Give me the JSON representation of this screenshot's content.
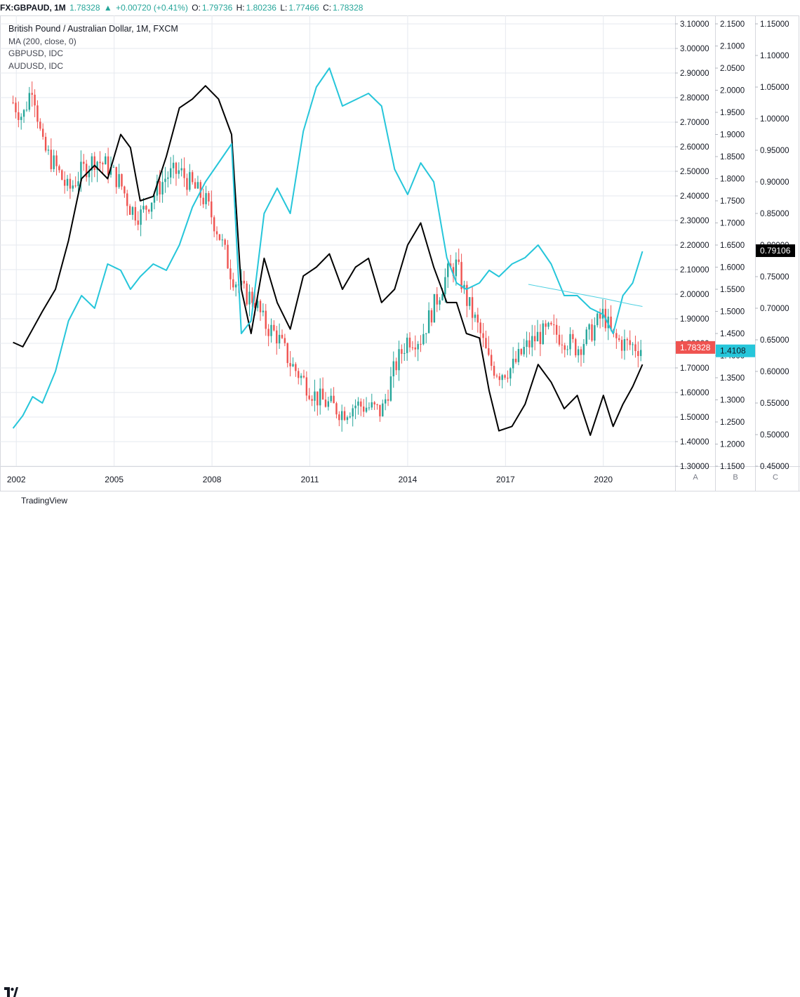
{
  "header": {
    "symbol": "FX:GBPAUD, 1M",
    "price": "1.78328",
    "change": "+0.00720 (+0.41%)",
    "ohlc": [
      {
        "label": "O:",
        "value": "1.79736"
      },
      {
        "label": "H:",
        "value": "1.80236"
      },
      {
        "label": "L:",
        "value": "1.77466"
      },
      {
        "label": "C:",
        "value": "1.78328"
      }
    ]
  },
  "legend": {
    "title": "British Pound / Australian Dollar, 1M, FXCM",
    "items": [
      "MA (200, close, 0)",
      "GBPUSD, IDC",
      "AUDUSD, IDC"
    ]
  },
  "footer": {
    "brand": "TradingView"
  },
  "colors": {
    "up": "#26a69a",
    "down": "#ef5350",
    "gbpusd": "#000000",
    "audusd": "#26c6da",
    "ma": "#4dd0e1",
    "grid": "#e6e9ef"
  },
  "chart_data": {
    "type": "line",
    "x_ticks": [
      "2002",
      "2005",
      "2008",
      "2011",
      "2014",
      "2017",
      "2020"
    ],
    "x_tick_years": [
      2002,
      2005,
      2008,
      2011,
      2014,
      2017,
      2020
    ],
    "xlim": [
      2001.5,
      2022.2
    ],
    "grid": true,
    "scale_labels": [
      "A",
      "B",
      "C"
    ],
    "axes": {
      "A": {
        "ylim": [
          1.3,
          3.1
        ],
        "ticks": [
          "1.30000",
          "1.40000",
          "1.50000",
          "1.60000",
          "1.70000",
          "1.80000",
          "1.90000",
          "2.00000",
          "2.10000",
          "2.20000",
          "2.30000",
          "2.40000",
          "2.50000",
          "2.60000",
          "2.70000",
          "2.80000",
          "2.90000",
          "3.00000",
          "3.10000"
        ],
        "price_label": "1.78328",
        "price_value": 1.78328
      },
      "B": {
        "ylim": [
          1.15,
          2.15
        ],
        "ticks": [
          "1.1500",
          "1.2000",
          "1.2500",
          "1.3000",
          "1.3500",
          "1.4000",
          "1.4500",
          "1.5000",
          "1.5500",
          "1.6000",
          "1.6500",
          "1.7000",
          "1.7500",
          "1.8000",
          "1.8500",
          "1.9000",
          "1.9500",
          "2.0000",
          "2.0500",
          "2.1000",
          "2.1500"
        ],
        "price_label": "1.4108",
        "price_value": 1.4108
      },
      "C": {
        "ylim": [
          0.45,
          1.15
        ],
        "ticks": [
          "0.45000",
          "0.50000",
          "0.55000",
          "0.60000",
          "0.65000",
          "0.70000",
          "0.75000",
          "0.80000",
          "0.85000",
          "0.90000",
          "0.95000",
          "1.00000",
          "1.05000",
          "1.10000",
          "1.15000"
        ],
        "price_label": "0.79106",
        "price_value": 0.79106
      }
    },
    "series": [
      {
        "name": "British Pound / Australian Dollar",
        "axis": "A",
        "kind": "candles",
        "x": [
          2001.9,
          2002.2,
          2002.5,
          2002.8,
          2003.2,
          2003.6,
          2004.0,
          2004.4,
          2004.8,
          2005.2,
          2005.5,
          2005.8,
          2006.2,
          2006.6,
          2007.0,
          2007.4,
          2007.8,
          2008.2,
          2008.6,
          2009.0,
          2009.3,
          2009.6,
          2010.0,
          2010.4,
          2010.8,
          2011.2,
          2011.6,
          2012.0,
          2012.4,
          2012.8,
          2013.2,
          2013.6,
          2014.0,
          2014.4,
          2014.8,
          2015.2,
          2015.5,
          2015.8,
          2016.2,
          2016.5,
          2016.8,
          2017.2,
          2017.6,
          2018.0,
          2018.4,
          2018.8,
          2019.2,
          2019.6,
          2020.0,
          2020.3,
          2020.6,
          2020.9,
          2021.2
        ],
        "y": [
          2.78,
          2.72,
          2.86,
          2.6,
          2.52,
          2.42,
          2.5,
          2.55,
          2.52,
          2.45,
          2.35,
          2.32,
          2.4,
          2.48,
          2.5,
          2.44,
          2.38,
          2.25,
          2.08,
          2.0,
          1.98,
          1.88,
          1.83,
          1.72,
          1.65,
          1.58,
          1.55,
          1.52,
          1.55,
          1.54,
          1.52,
          1.7,
          1.82,
          1.82,
          1.95,
          2.08,
          2.12,
          1.98,
          1.85,
          1.72,
          1.68,
          1.7,
          1.78,
          1.83,
          1.85,
          1.82,
          1.78,
          1.84,
          1.92,
          1.82,
          1.8,
          1.79,
          1.78
        ]
      },
      {
        "name": "GBPUSD, IDC",
        "axis": "B",
        "kind": "line",
        "x": [
          2001.9,
          2002.2,
          2002.5,
          2002.8,
          2003.2,
          2003.6,
          2004.0,
          2004.4,
          2004.8,
          2005.2,
          2005.5,
          2005.8,
          2006.2,
          2006.6,
          2007.0,
          2007.4,
          2007.8,
          2008.2,
          2008.6,
          2008.9,
          2009.2,
          2009.6,
          2010.0,
          2010.4,
          2010.8,
          2011.2,
          2011.6,
          2012.0,
          2012.4,
          2012.8,
          2013.2,
          2013.6,
          2014.0,
          2014.4,
          2014.8,
          2015.2,
          2015.5,
          2015.8,
          2016.2,
          2016.5,
          2016.8,
          2017.2,
          2017.6,
          2018.0,
          2018.4,
          2018.8,
          2019.2,
          2019.6,
          2020.0,
          2020.3,
          2020.6,
          2020.9,
          2021.2
        ],
        "y": [
          1.43,
          1.42,
          1.46,
          1.5,
          1.55,
          1.66,
          1.8,
          1.83,
          1.8,
          1.9,
          1.87,
          1.75,
          1.76,
          1.85,
          1.96,
          1.98,
          2.01,
          1.98,
          1.9,
          1.55,
          1.45,
          1.62,
          1.52,
          1.46,
          1.58,
          1.6,
          1.63,
          1.55,
          1.6,
          1.62,
          1.52,
          1.55,
          1.65,
          1.7,
          1.6,
          1.52,
          1.52,
          1.45,
          1.44,
          1.32,
          1.23,
          1.24,
          1.29,
          1.38,
          1.34,
          1.28,
          1.31,
          1.22,
          1.31,
          1.24,
          1.29,
          1.33,
          1.38
        ]
      },
      {
        "name": "AUDUSD, IDC",
        "axis": "C",
        "kind": "line",
        "x": [
          2001.9,
          2002.2,
          2002.5,
          2002.8,
          2003.2,
          2003.6,
          2004.0,
          2004.4,
          2004.8,
          2005.2,
          2005.5,
          2005.8,
          2006.2,
          2006.6,
          2007.0,
          2007.4,
          2007.8,
          2008.2,
          2008.6,
          2008.9,
          2009.2,
          2009.6,
          2010.0,
          2010.4,
          2010.8,
          2011.2,
          2011.6,
          2012.0,
          2012.4,
          2012.8,
          2013.2,
          2013.6,
          2014.0,
          2014.4,
          2014.8,
          2015.2,
          2015.5,
          2015.8,
          2016.2,
          2016.5,
          2016.8,
          2017.2,
          2017.6,
          2018.0,
          2018.4,
          2018.8,
          2019.2,
          2019.6,
          2020.0,
          2020.3,
          2020.6,
          2020.9,
          2021.2
        ],
        "y": [
          0.51,
          0.53,
          0.56,
          0.55,
          0.6,
          0.68,
          0.72,
          0.7,
          0.77,
          0.76,
          0.73,
          0.75,
          0.77,
          0.76,
          0.8,
          0.86,
          0.9,
          0.93,
          0.96,
          0.66,
          0.68,
          0.85,
          0.89,
          0.85,
          0.98,
          1.05,
          1.08,
          1.02,
          1.03,
          1.04,
          1.02,
          0.92,
          0.88,
          0.93,
          0.9,
          0.78,
          0.74,
          0.73,
          0.74,
          0.76,
          0.75,
          0.77,
          0.78,
          0.8,
          0.77,
          0.72,
          0.72,
          0.7,
          0.69,
          0.66,
          0.72,
          0.74,
          0.79
        ]
      },
      {
        "name": "MA (200, close, 0)",
        "axis": "A",
        "kind": "ma",
        "x": [
          2017.7,
          2018.5,
          2019.3,
          2020.1,
          2020.8,
          2021.2
        ],
        "y": [
          2.04,
          2.02,
          2.0,
          1.98,
          1.96,
          1.95
        ]
      }
    ]
  }
}
